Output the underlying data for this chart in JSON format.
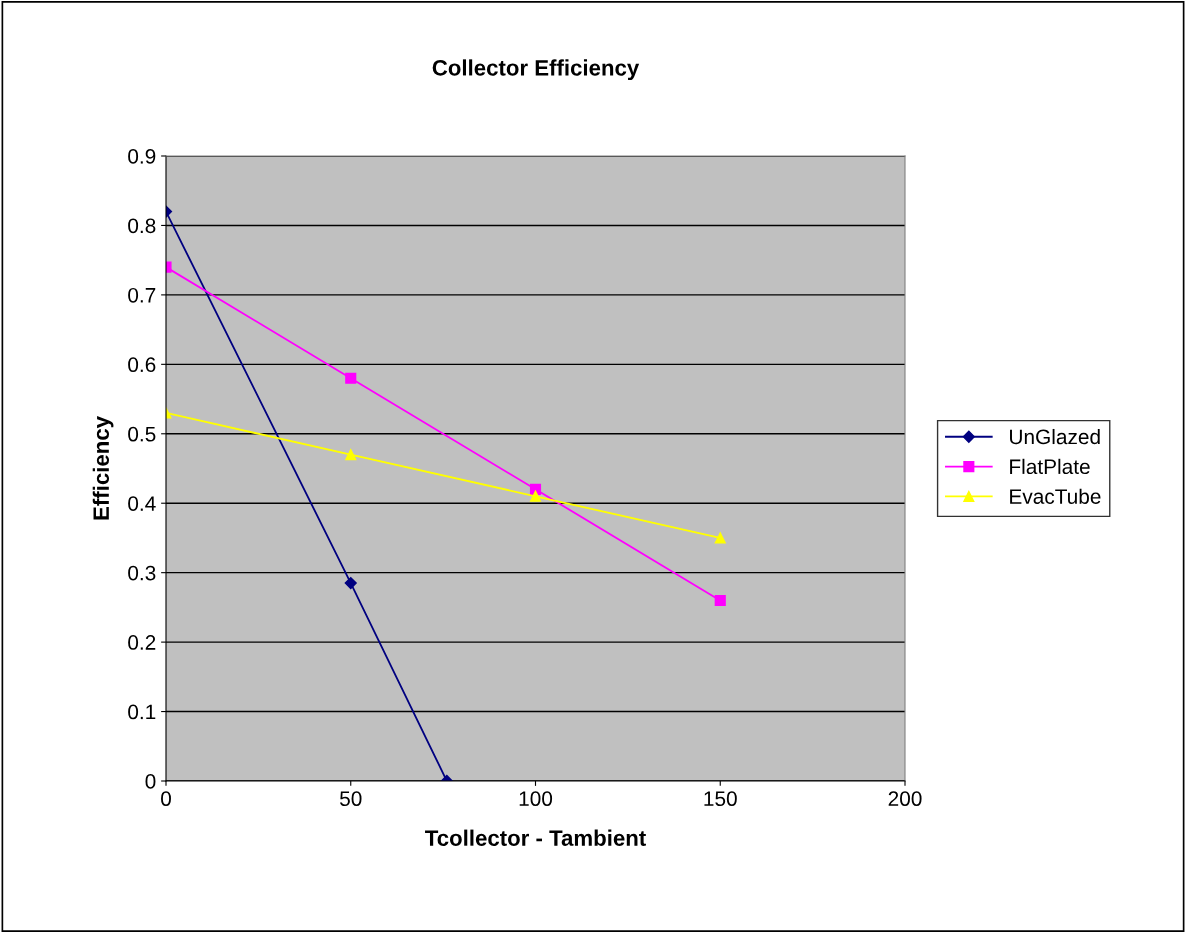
{
  "chart_data": {
    "type": "line",
    "title": "Collector Efficiency",
    "xlabel": "Tcollector - Tambient",
    "ylabel": "Efficiency",
    "xlim": [
      0,
      200
    ],
    "xticks": [
      0,
      50,
      100,
      150,
      200
    ],
    "ylim": [
      0,
      0.9
    ],
    "yticks": [
      0,
      0.1,
      0.2,
      0.3,
      0.4,
      0.5,
      0.6,
      0.7,
      0.8,
      0.9
    ],
    "grid": "y",
    "legend": "right",
    "series": [
      {
        "name": "UnGlazed",
        "color": "#000080",
        "marker": "diamond",
        "x": [
          0,
          50,
          76
        ],
        "values": [
          0.82,
          0.285,
          0
        ]
      },
      {
        "name": "FlatPlate",
        "color": "#ff00ff",
        "marker": "square",
        "x": [
          0,
          50,
          100,
          150
        ],
        "values": [
          0.74,
          0.58,
          0.42,
          0.26
        ]
      },
      {
        "name": "EvacTube",
        "color": "#ffff00",
        "marker": "triangle",
        "x": [
          0,
          50,
          100,
          150
        ],
        "values": [
          0.53,
          0.47,
          0.41,
          0.35
        ]
      }
    ]
  }
}
